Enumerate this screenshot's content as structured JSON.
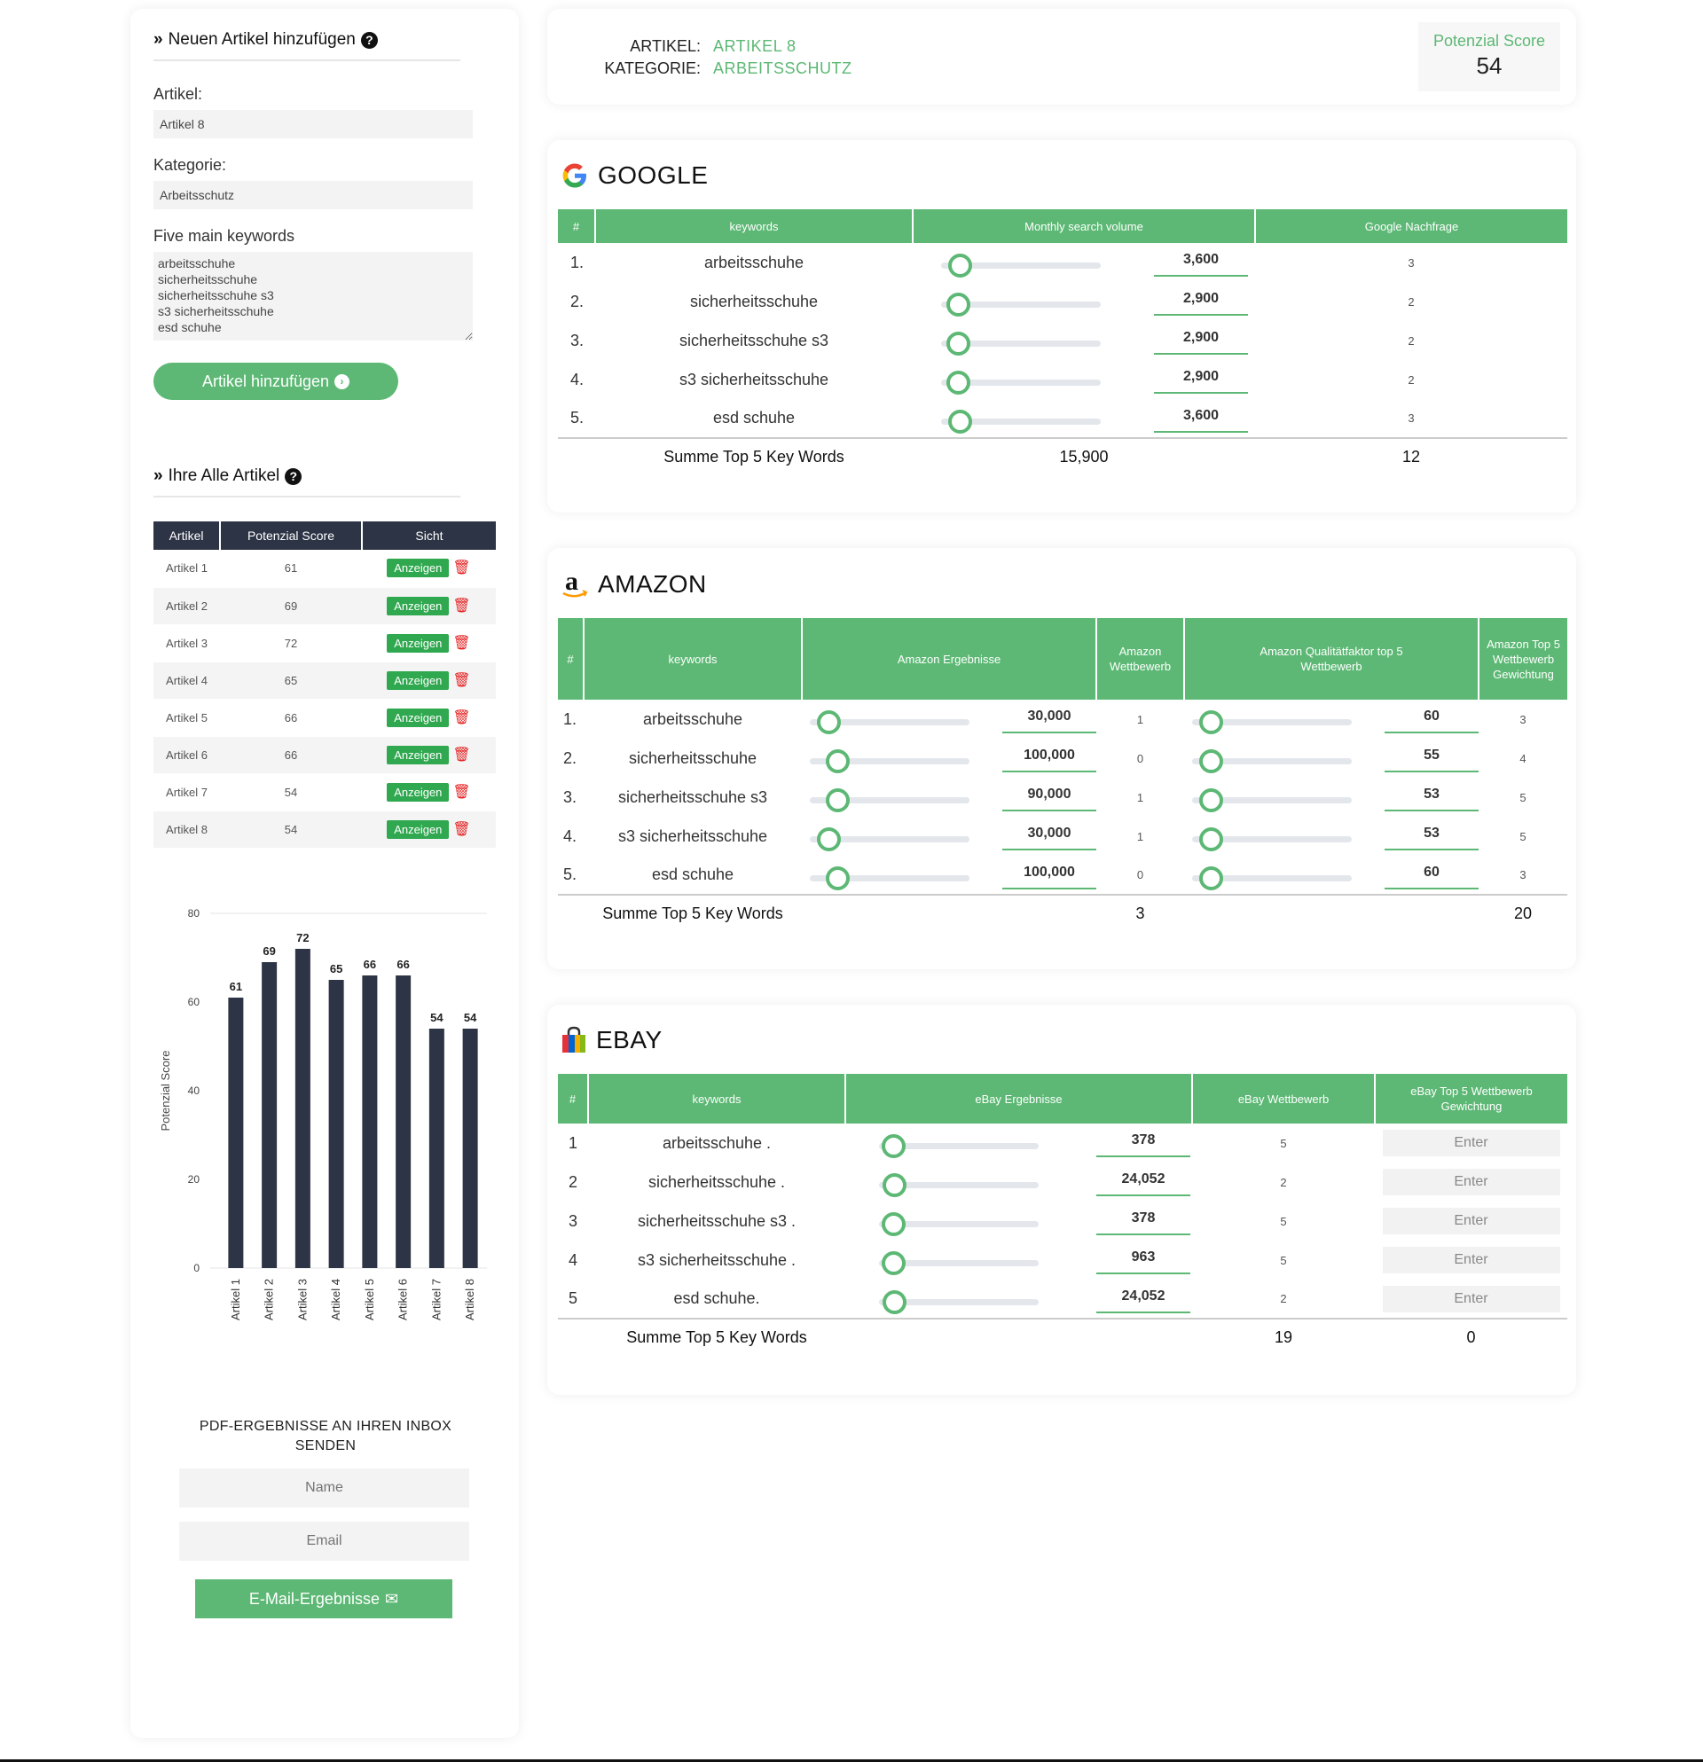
{
  "sidebar": {
    "add_title": "Neuen Artikel hinzufügen",
    "artikel_label": "Artikel:",
    "artikel_value": "Artikel 8",
    "kategorie_label": "Kategorie:",
    "kategorie_value": "Arbeitsschutz",
    "keywords_label": "Five main keywords",
    "keywords_value": "arbeitsschuhe\nsicherheitsschuhe\nsicherheitsschuhe s3\ns3 sicherheitsschuhe\nesd schuhe",
    "add_button": "Artikel hinzufügen",
    "list_title": "Ihre Alle Artikel",
    "table_headers": [
      "Artikel",
      "Potenzial Score",
      "Sicht"
    ],
    "show_label": "Anzeigen",
    "articles": [
      {
        "name": "Artikel 1",
        "score": "61"
      },
      {
        "name": "Artikel 2",
        "score": "69"
      },
      {
        "name": "Artikel 3",
        "score": "72"
      },
      {
        "name": "Artikel 4",
        "score": "65"
      },
      {
        "name": "Artikel 5",
        "score": "66"
      },
      {
        "name": "Artikel 6",
        "score": "66"
      },
      {
        "name": "Artikel 7",
        "score": "54"
      },
      {
        "name": "Artikel 8",
        "score": "54"
      }
    ],
    "pdf_title": "PDF-ERGEBNISSE AN IHREN INBOX SENDEN",
    "name_placeholder": "Name",
    "email_placeholder": "Email",
    "email_button": "E-Mail-Ergebnisse"
  },
  "chart_data": {
    "type": "bar",
    "categories": [
      "Artikel 1",
      "Artikel 2",
      "Artikel 3",
      "Artikel 4",
      "Artikel 5",
      "Artikel 6",
      "Artikel 7",
      "Artikel 8"
    ],
    "values": [
      61,
      69,
      72,
      65,
      66,
      66,
      54,
      54
    ],
    "ylabel": "Potenzial Score",
    "ylim": [
      0,
      80
    ],
    "yticks": [
      0,
      20,
      40,
      60,
      80
    ],
    "color": "#2d3445",
    "grid": false
  },
  "header": {
    "artikel_key": "ARTIKEL:",
    "artikel_val": "ARTIKEL 8",
    "kategorie_key": "KATEGORIE:",
    "kategorie_val": "ARBEITSSCHUTZ",
    "score_label": "Potenzial Score",
    "score_value": "54"
  },
  "google": {
    "title": "GOOGLE",
    "headers": [
      "#",
      "keywords",
      "Monthly search volume",
      "Google Nachfrage"
    ],
    "rows": [
      {
        "n": "1.",
        "kw": "arbeitsschuhe",
        "slider": 0.05,
        "val": "3,600",
        "demand": "3"
      },
      {
        "n": "2.",
        "kw": "sicherheitsschuhe",
        "slider": 0.04,
        "val": "2,900",
        "demand": "2"
      },
      {
        "n": "3.",
        "kw": "sicherheitsschuhe s3",
        "slider": 0.04,
        "val": "2,900",
        "demand": "2"
      },
      {
        "n": "4.",
        "kw": "s3 sicherheitsschuhe",
        "slider": 0.04,
        "val": "2,900",
        "demand": "2"
      },
      {
        "n": "5.",
        "kw": "esd schuhe",
        "slider": 0.05,
        "val": "3,600",
        "demand": "3"
      }
    ],
    "sum_label": "Summe Top 5 Key Words",
    "sum_volume": "15,900",
    "sum_demand": "12"
  },
  "amazon": {
    "title": "AMAZON",
    "headers": [
      "#",
      "keywords",
      "Amazon Ergebnisse",
      "Amazon Wettbewerb",
      "Amazon Qualitätfaktor top 5 Wettbewerb",
      "Amazon Top 5 Wettbewerb Gewichtung"
    ],
    "rows": [
      {
        "n": "1.",
        "kw": "arbeitsschuhe",
        "s1": 0.05,
        "v1": "30,000",
        "comp": "1",
        "s2": 0.05,
        "v2": "60",
        "w": "3"
      },
      {
        "n": "2.",
        "kw": "sicherheitsschuhe",
        "s1": 0.12,
        "v1": "100,000",
        "comp": "0",
        "s2": 0.05,
        "v2": "55",
        "w": "4"
      },
      {
        "n": "3.",
        "kw": "sicherheitsschuhe s3",
        "s1": 0.12,
        "v1": "90,000",
        "comp": "1",
        "s2": 0.05,
        "v2": "53",
        "w": "5"
      },
      {
        "n": "4.",
        "kw": "s3 sicherheitsschuhe",
        "s1": 0.05,
        "v1": "30,000",
        "comp": "1",
        "s2": 0.05,
        "v2": "53",
        "w": "5"
      },
      {
        "n": "5.",
        "kw": "esd schuhe",
        "s1": 0.12,
        "v1": "100,000",
        "comp": "0",
        "s2": 0.05,
        "v2": "60",
        "w": "3"
      }
    ],
    "sum_label": "Summe Top 5 Key Words",
    "sum_comp": "3",
    "sum_w": "20"
  },
  "ebay": {
    "title": "EBAY",
    "headers": [
      "#",
      "keywords",
      "eBay Ergebnisse",
      "eBay Wettbewerb",
      "eBay Top 5 Wettbewerb Gewichtung"
    ],
    "enter_placeholder": "Enter",
    "rows": [
      {
        "n": "1",
        "kw": "arbeitsschuhe .",
        "slider": 0.02,
        "val": "378",
        "comp": "5"
      },
      {
        "n": "2",
        "kw": "sicherheitsschuhe .",
        "slider": 0.03,
        "val": "24,052",
        "comp": "2"
      },
      {
        "n": "3",
        "kw": "sicherheitsschuhe s3 .",
        "slider": 0.02,
        "val": "378",
        "comp": "5"
      },
      {
        "n": "4",
        "kw": "s3 sicherheitsschuhe .",
        "slider": 0.02,
        "val": "963",
        "comp": "5"
      },
      {
        "n": "5",
        "kw": "esd schuhe.",
        "slider": 0.03,
        "val": "24,052",
        "comp": "2"
      }
    ],
    "sum_label": "Summe Top 5 Key Words",
    "sum_comp": "19",
    "sum_w": "0"
  },
  "colors": {
    "accent": "#5cb874",
    "dark": "#2d3445",
    "danger": "#e52222"
  }
}
